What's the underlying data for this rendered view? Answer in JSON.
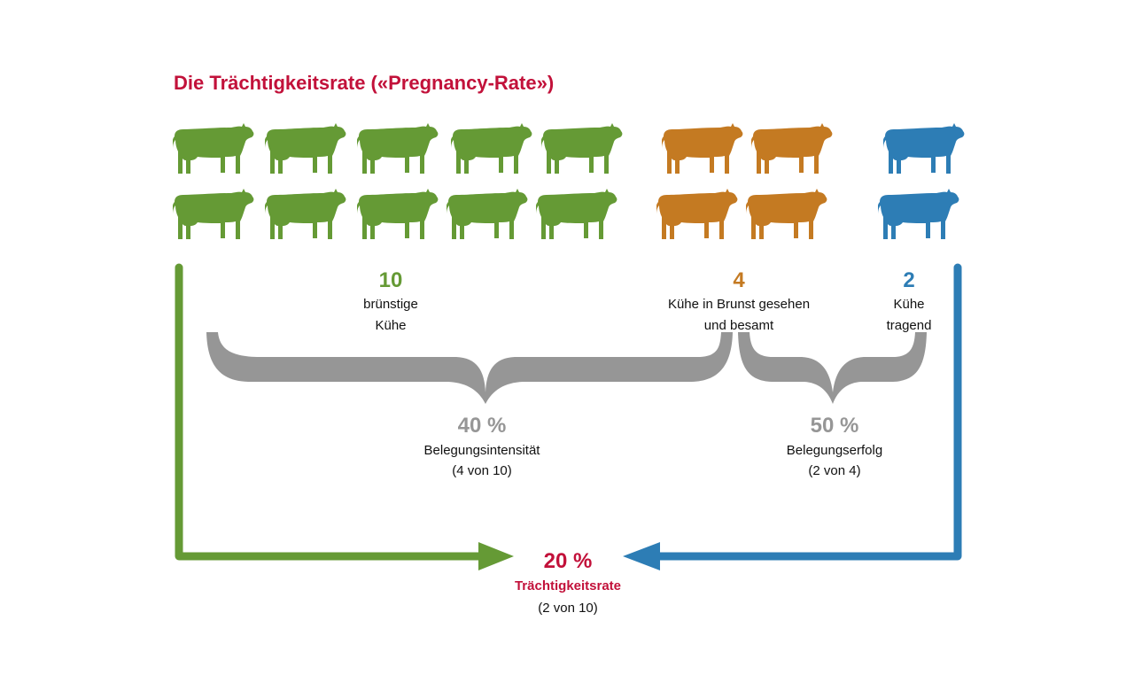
{
  "title": "Die Trächtigkeitsrate («Pregnancy-Rate»)",
  "colors": {
    "green": "#659a35",
    "orange": "#c47a22",
    "blue": "#2d7db5",
    "gray": "#969696",
    "red": "#c2113a"
  },
  "icon": "cow-icon",
  "groups": {
    "green": {
      "count": 10,
      "number": "10",
      "line1": "brünstige",
      "line2": "Kühe"
    },
    "orange": {
      "count": 4,
      "number": "4",
      "line1": "Kühe in Brunst gesehen",
      "line2": "und besamt"
    },
    "blue": {
      "count": 2,
      "number": "2",
      "line1": "Kühe",
      "line2": "tragend"
    }
  },
  "intensity": {
    "percent": "40 %",
    "label": "Belegungsintensität",
    "detail": "(4 von 10)"
  },
  "success": {
    "percent": "50 %",
    "label": "Belegungserfolg",
    "detail": "(2 von 4)"
  },
  "rate": {
    "percent": "20 %",
    "label": "Trächtigkeitsrate",
    "detail": "(2 von 10)"
  }
}
